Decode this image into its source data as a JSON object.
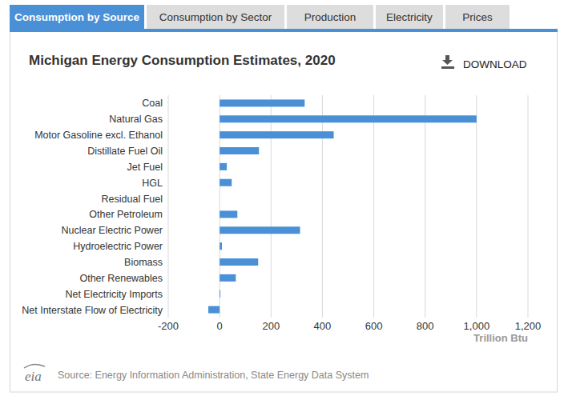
{
  "tabs": [
    {
      "label": "Consumption by Source",
      "active": true
    },
    {
      "label": "Consumption by Sector",
      "active": false
    },
    {
      "label": "Production",
      "active": false
    },
    {
      "label": "Electricity",
      "active": false
    },
    {
      "label": "Prices",
      "active": false
    }
  ],
  "download": "DOWNLOAD",
  "source": "Source: Energy Information Administration, State Energy Data System",
  "logo": "eia",
  "chart_data": {
    "type": "bar",
    "orientation": "horizontal",
    "title": "Michigan Energy Consumption Estimates, 2020",
    "categories": [
      "Coal",
      "Natural Gas",
      "Motor Gasoline excl. Ethanol",
      "Distillate Fuel Oil",
      "Jet Fuel",
      "HGL",
      "Residual Fuel",
      "Other Petroleum",
      "Nuclear Electric Power",
      "Hydroelectric Power",
      "Biomass",
      "Other Renewables",
      "Net Electricity Imports",
      "Net Interstate Flow of Electricity"
    ],
    "values": [
      331,
      1000,
      444,
      153,
      28,
      47,
      0,
      69,
      313,
      9,
      150,
      63,
      3,
      -44
    ],
    "color": "#4a90d6",
    "xlim": [
      -200,
      1200
    ],
    "xticks": [
      -200,
      0,
      200,
      400,
      600,
      800,
      {
        "value": 1000,
        "label": "1,000"
      },
      {
        "value": 1200,
        "label": "1,200"
      }
    ],
    "xlabel": "Trillion Btu",
    "grid": true
  }
}
